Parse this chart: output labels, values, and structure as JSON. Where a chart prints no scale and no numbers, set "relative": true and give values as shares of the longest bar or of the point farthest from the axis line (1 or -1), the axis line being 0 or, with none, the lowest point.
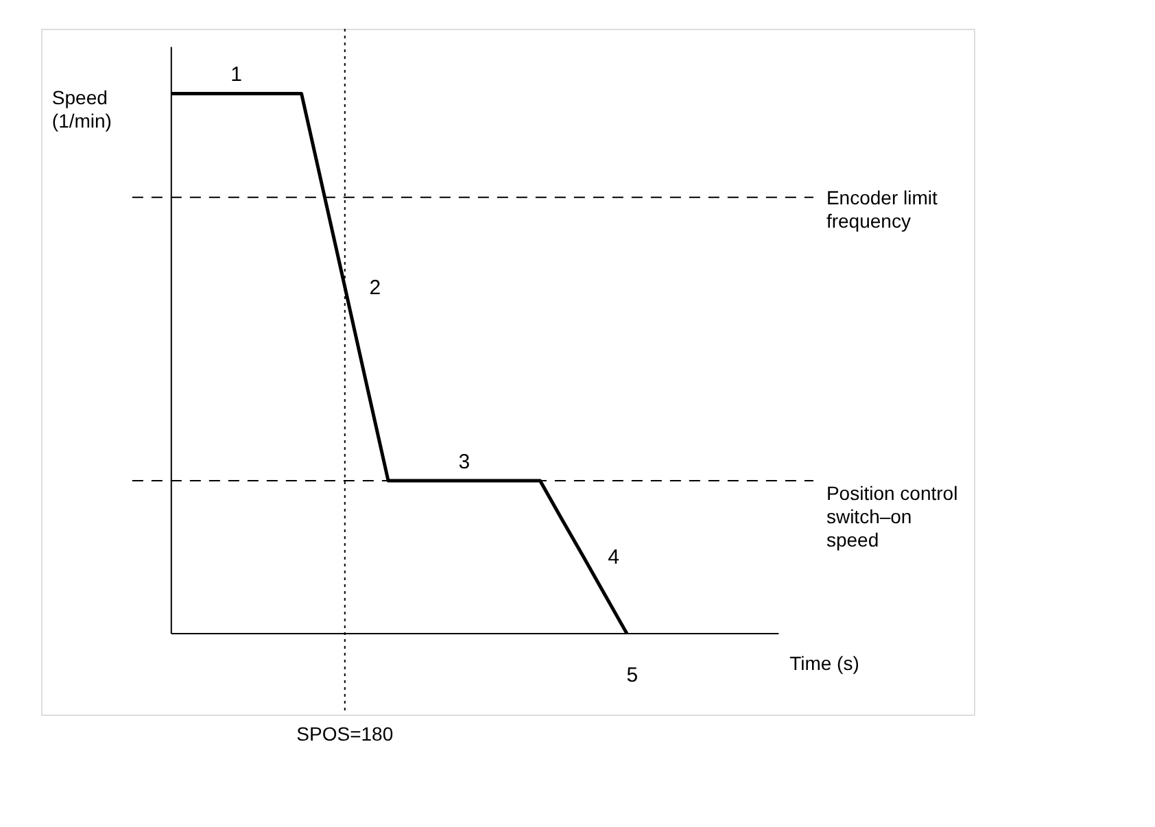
{
  "chart_data": {
    "type": "line",
    "relative": true,
    "xlabel": "Time (s)",
    "ylabel": "Speed\n(1/min)",
    "categories": [
      null,
      null,
      null,
      null,
      null,
      null,
      null,
      null,
      null,
      null,
      null,
      null,
      null,
      null,
      null,
      null,
      null,
      null,
      null,
      null,
      null,
      null,
      null,
      null,
      null,
      null,
      null,
      null,
      null
    ],
    "series": [
      {
        "color": "#000000",
        "values": [
          1,
          1,
          1,
          1,
          1,
          1,
          1,
          0.821,
          0.642,
          0.462,
          0.283,
          0.283,
          0.283,
          0.283,
          0.283,
          0.283,
          0.283,
          0.283,
          0.212,
          0.142,
          0.071,
          0,
          null,
          null,
          null,
          null,
          null,
          null,
          null
        ]
      }
    ],
    "ylim": [
      -0.15,
      1.12
    ],
    "grid": false,
    "marker": "none",
    "line_style": "solid",
    "ref_lines": [
      {
        "axis": "y",
        "value": 0.808,
        "label": "Encoder limit\nfrequency",
        "line_style": "dashed",
        "color": "#000000"
      },
      {
        "axis": "y",
        "value": 0.283,
        "label": "Position control\nswitch–on\nspeed",
        "line_style": "dashed",
        "color": "#000000"
      }
    ],
    "annotations": [
      "1",
      "2",
      "3",
      "4",
      "5",
      "SPOS=180"
    ]
  }
}
